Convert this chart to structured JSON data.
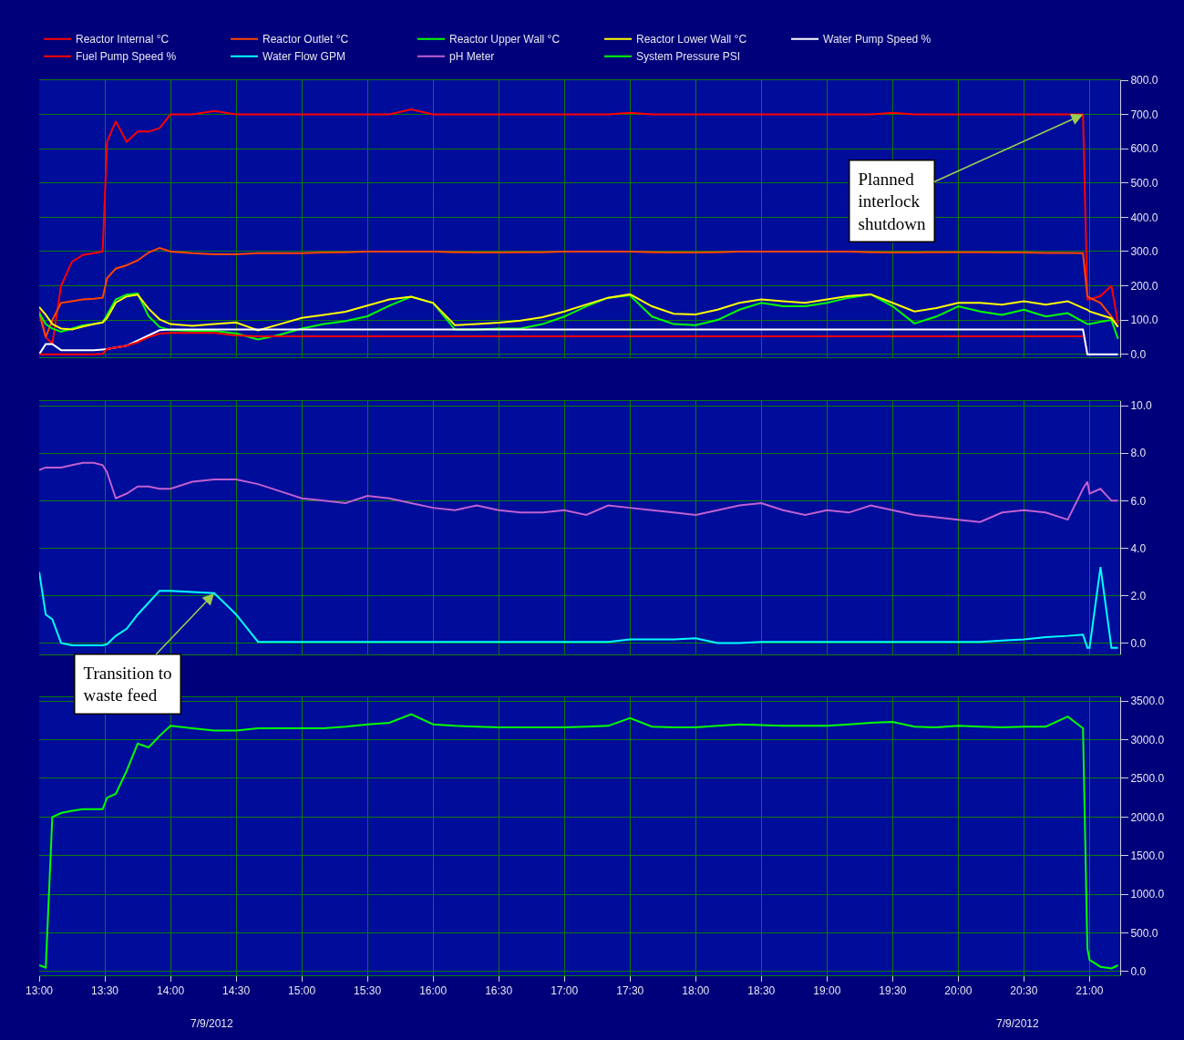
{
  "chart_data": [
    {
      "type": "line",
      "x": [
        "2012-07-09T13:00",
        "2012-07-09T13:03",
        "2012-07-09T13:06",
        "2012-07-09T13:10",
        "2012-07-09T13:15",
        "2012-07-09T13:20",
        "2012-07-09T13:25",
        "2012-07-09T13:29",
        "2012-07-09T13:31",
        "2012-07-09T13:35",
        "2012-07-09T13:40",
        "2012-07-09T13:45",
        "2012-07-09T13:50",
        "2012-07-09T13:55",
        "2012-07-09T14:00",
        "2012-07-09T14:10",
        "2012-07-09T14:20",
        "2012-07-09T14:30",
        "2012-07-09T14:40",
        "2012-07-09T14:50",
        "2012-07-09T15:00",
        "2012-07-09T15:10",
        "2012-07-09T15:20",
        "2012-07-09T15:30",
        "2012-07-09T15:40",
        "2012-07-09T15:50",
        "2012-07-09T16:00",
        "2012-07-09T16:10",
        "2012-07-09T16:20",
        "2012-07-09T16:30",
        "2012-07-09T16:40",
        "2012-07-09T16:50",
        "2012-07-09T17:00",
        "2012-07-09T17:10",
        "2012-07-09T17:20",
        "2012-07-09T17:30",
        "2012-07-09T17:40",
        "2012-07-09T17:50",
        "2012-07-09T18:00",
        "2012-07-09T18:10",
        "2012-07-09T18:20",
        "2012-07-09T18:30",
        "2012-07-09T18:40",
        "2012-07-09T18:50",
        "2012-07-09T19:00",
        "2012-07-09T19:10",
        "2012-07-09T19:20",
        "2012-07-09T19:30",
        "2012-07-09T19:40",
        "2012-07-09T19:50",
        "2012-07-09T20:00",
        "2012-07-09T20:10",
        "2012-07-09T20:20",
        "2012-07-09T20:30",
        "2012-07-09T20:40",
        "2012-07-09T20:50",
        "2012-07-09T20:57",
        "2012-07-09T20:59",
        "2012-07-09T21:00",
        "2012-07-09T21:05",
        "2012-07-09T21:10",
        "2012-07-09T21:13"
      ],
      "series": [
        {
          "name": "Reactor Internal °C",
          "color": "#ff0000",
          "values": [
            130,
            50,
            30,
            200,
            270,
            290,
            295,
            300,
            620,
            680,
            620,
            650,
            650,
            660,
            700,
            700,
            710,
            700,
            700,
            700,
            700,
            700,
            700,
            700,
            700,
            715,
            700,
            700,
            700,
            700,
            700,
            700,
            700,
            700,
            700,
            705,
            700,
            700,
            700,
            700,
            700,
            700,
            700,
            700,
            700,
            700,
            700,
            705,
            700,
            700,
            700,
            700,
            700,
            700,
            700,
            700,
            700,
            160,
            160,
            170,
            200,
            90
          ]
        },
        {
          "name": "Reactor Outlet °C",
          "color": "#ff4500",
          "values": [
            120,
            50,
            100,
            150,
            155,
            160,
            162,
            165,
            222,
            250,
            260,
            274,
            297,
            310,
            300,
            295,
            292,
            292,
            295,
            295,
            295,
            297,
            298,
            300,
            300,
            300,
            300,
            298,
            297,
            297,
            298,
            298,
            300,
            300,
            300,
            300,
            298,
            297,
            297,
            298,
            300,
            300,
            300,
            300,
            300,
            300,
            298,
            297,
            297,
            298,
            298,
            298,
            297,
            297,
            296,
            296,
            295,
            170,
            165,
            150,
            110,
            80
          ]
        },
        {
          "name": "Reactor Upper Wall °C",
          "color": "#00ff00",
          "values": [
            120,
            88,
            75,
            66,
            75,
            84,
            88,
            93,
            115,
            160,
            174,
            177,
            111,
            80,
            70,
            68,
            68,
            61,
            43,
            57,
            75,
            88,
            97,
            111,
            142,
            168,
            150,
            72,
            72,
            75,
            75,
            88,
            110,
            140,
            165,
            172,
            110,
            88,
            85,
            100,
            130,
            150,
            140,
            140,
            150,
            165,
            175,
            140,
            90,
            110,
            140,
            125,
            115,
            130,
            110,
            120,
            95,
            88,
            88,
            95,
            100,
            45
          ]
        },
        {
          "name": "Reactor Lower Wall °C",
          "color": "#ffff00",
          "values": [
            138,
            115,
            88,
            75,
            72,
            81,
            88,
            93,
            106,
            151,
            169,
            174,
            133,
            102,
            88,
            83,
            88,
            93,
            70,
            88,
            106,
            115,
            124,
            142,
            160,
            168,
            150,
            85,
            88,
            92,
            98,
            108,
            125,
            145,
            165,
            175,
            140,
            118,
            116,
            130,
            150,
            160,
            155,
            150,
            160,
            170,
            175,
            150,
            125,
            135,
            150,
            150,
            145,
            155,
            145,
            155,
            135,
            130,
            125,
            115,
            105,
            80
          ]
        },
        {
          "name": "Water Pump Speed %",
          "color": "#ffffff",
          "values": [
            0,
            30,
            30,
            12,
            12,
            12,
            12,
            14,
            15,
            20,
            25,
            40,
            55,
            70,
            72,
            72,
            72,
            72,
            72,
            72,
            72,
            72,
            72,
            72,
            72,
            72,
            72,
            72,
            72,
            72,
            72,
            72,
            72,
            72,
            72,
            72,
            72,
            72,
            72,
            72,
            72,
            72,
            72,
            72,
            72,
            72,
            72,
            72,
            72,
            72,
            72,
            72,
            72,
            72,
            72,
            72,
            72,
            0,
            0,
            0,
            0,
            0
          ]
        },
        {
          "name": "Fuel Pump Speed %",
          "color": "#ff0000",
          "values": [
            0,
            0,
            0,
            0,
            0,
            0,
            0,
            1,
            15,
            20,
            25,
            35,
            50,
            60,
            62,
            62,
            62,
            55,
            52,
            52,
            52,
            52,
            52,
            52,
            52,
            52,
            52,
            52,
            52,
            52,
            52,
            52,
            52,
            52,
            52,
            52,
            52,
            52,
            52,
            52,
            52,
            52,
            52,
            52,
            52,
            52,
            52,
            52,
            52,
            52,
            52,
            52,
            52,
            52,
            52,
            52,
            52,
            null,
            null,
            null,
            null,
            null
          ]
        }
      ],
      "xlim": [
        "2012-07-09T13:00",
        "2012-07-09T21:14"
      ],
      "xticks": [
        {
          "value": "2012-07-09T13:00",
          "label": null
        },
        {
          "value": "2012-07-09T13:30",
          "label": null
        },
        {
          "value": "2012-07-09T14:00",
          "label": null
        },
        {
          "value": "2012-07-09T14:30",
          "label": null
        },
        {
          "value": "2012-07-09T15:00",
          "label": null
        },
        {
          "value": "2012-07-09T15:30",
          "label": null
        },
        {
          "value": "2012-07-09T16:00",
          "label": null
        },
        {
          "value": "2012-07-09T16:30",
          "label": null
        },
        {
          "value": "2012-07-09T17:00",
          "label": null
        },
        {
          "value": "2012-07-09T17:30",
          "label": null
        },
        {
          "value": "2012-07-09T18:00",
          "label": null
        },
        {
          "value": "2012-07-09T18:30",
          "label": null
        },
        {
          "value": "2012-07-09T19:00",
          "label": null
        },
        {
          "value": "2012-07-09T19:30",
          "label": null
        },
        {
          "value": "2012-07-09T20:00",
          "label": null
        },
        {
          "value": "2012-07-09T20:30",
          "label": null
        },
        {
          "value": "2012-07-09T21:00",
          "label": null
        }
      ],
      "ylim": [
        -10,
        800
      ],
      "yticks": [
        {
          "value": 0,
          "label": "0.0"
        },
        {
          "value": 100,
          "label": "100.0"
        },
        {
          "value": 200,
          "label": "200.0"
        },
        {
          "value": 300,
          "label": "300.0"
        },
        {
          "value": 400,
          "label": "400.0"
        },
        {
          "value": 500,
          "label": "500.0"
        },
        {
          "value": 600,
          "label": "600.0"
        },
        {
          "value": 700,
          "label": "700.0"
        },
        {
          "value": 800,
          "label": "800.0"
        }
      ],
      "tick_labels": "y",
      "grid": true,
      "legend": "top",
      "annotations": [
        {
          "text": "Planned\ninterlock\nshutdown",
          "x": "2012-07-09T20:57",
          "y": 700
        }
      ]
    },
    {
      "type": "line",
      "x": [
        "2012-07-09T13:00",
        "2012-07-09T13:03",
        "2012-07-09T13:06",
        "2012-07-09T13:10",
        "2012-07-09T13:15",
        "2012-07-09T13:20",
        "2012-07-09T13:25",
        "2012-07-09T13:29",
        "2012-07-09T13:31",
        "2012-07-09T13:35",
        "2012-07-09T13:40",
        "2012-07-09T13:45",
        "2012-07-09T13:50",
        "2012-07-09T13:55",
        "2012-07-09T14:00",
        "2012-07-09T14:10",
        "2012-07-09T14:20",
        "2012-07-09T14:30",
        "2012-07-09T14:40",
        "2012-07-09T14:50",
        "2012-07-09T15:00",
        "2012-07-09T15:10",
        "2012-07-09T15:20",
        "2012-07-09T15:30",
        "2012-07-09T15:40",
        "2012-07-09T15:50",
        "2012-07-09T16:00",
        "2012-07-09T16:10",
        "2012-07-09T16:20",
        "2012-07-09T16:30",
        "2012-07-09T16:40",
        "2012-07-09T16:50",
        "2012-07-09T17:00",
        "2012-07-09T17:10",
        "2012-07-09T17:20",
        "2012-07-09T17:30",
        "2012-07-09T17:40",
        "2012-07-09T17:50",
        "2012-07-09T18:00",
        "2012-07-09T18:10",
        "2012-07-09T18:20",
        "2012-07-09T18:30",
        "2012-07-09T18:40",
        "2012-07-09T18:50",
        "2012-07-09T19:00",
        "2012-07-09T19:10",
        "2012-07-09T19:20",
        "2012-07-09T19:30",
        "2012-07-09T19:40",
        "2012-07-09T19:50",
        "2012-07-09T20:00",
        "2012-07-09T20:10",
        "2012-07-09T20:20",
        "2012-07-09T20:30",
        "2012-07-09T20:40",
        "2012-07-09T20:50",
        "2012-07-09T20:57",
        "2012-07-09T20:59",
        "2012-07-09T21:00",
        "2012-07-09T21:05",
        "2012-07-09T21:10",
        "2012-07-09T21:13"
      ],
      "series": [
        {
          "name": "Water Flow GPM",
          "color": "#00ffff",
          "values": [
            3.0,
            1.2,
            1.0,
            0.0,
            -0.1,
            -0.1,
            -0.1,
            -0.1,
            -0.05,
            0.3,
            0.6,
            1.2,
            1.7,
            2.2,
            2.2,
            2.15,
            2.1,
            1.2,
            0.05,
            0.05,
            0.05,
            0.05,
            0.05,
            0.05,
            0.05,
            0.05,
            0.05,
            0.05,
            0.05,
            0.05,
            0.05,
            0.05,
            0.05,
            0.05,
            0.05,
            0.15,
            0.15,
            0.15,
            0.2,
            0.0,
            0.0,
            0.05,
            0.05,
            0.05,
            0.05,
            0.05,
            0.05,
            0.05,
            0.05,
            0.05,
            0.05,
            0.05,
            0.1,
            0.15,
            0.25,
            0.3,
            0.35,
            -0.2,
            -0.2,
            3.2,
            -0.2,
            -0.2
          ]
        },
        {
          "name": "pH Meter",
          "color": "#c060d0",
          "values": [
            7.3,
            7.4,
            7.4,
            7.4,
            7.5,
            7.6,
            7.6,
            7.5,
            7.2,
            6.1,
            6.3,
            6.6,
            6.6,
            6.5,
            6.5,
            6.8,
            6.9,
            6.9,
            6.7,
            6.4,
            6.1,
            6.0,
            5.9,
            6.2,
            6.1,
            5.9,
            5.7,
            5.6,
            5.8,
            5.6,
            5.5,
            5.5,
            5.6,
            5.4,
            5.8,
            5.7,
            5.6,
            5.5,
            5.4,
            5.6,
            5.8,
            5.9,
            5.6,
            5.4,
            5.6,
            5.5,
            5.8,
            5.6,
            5.4,
            5.3,
            5.2,
            5.1,
            5.5,
            5.6,
            5.5,
            5.2,
            6.5,
            6.8,
            6.3,
            6.5,
            6.0,
            6.0
          ]
        }
      ],
      "xlim": [
        "2012-07-09T13:00",
        "2012-07-09T21:14"
      ],
      "xticks": [
        {
          "value": "2012-07-09T13:00",
          "label": null
        },
        {
          "value": "2012-07-09T13:30",
          "label": null
        },
        {
          "value": "2012-07-09T14:00",
          "label": null
        },
        {
          "value": "2012-07-09T14:30",
          "label": null
        },
        {
          "value": "2012-07-09T15:00",
          "label": null
        },
        {
          "value": "2012-07-09T15:30",
          "label": null
        },
        {
          "value": "2012-07-09T16:00",
          "label": null
        },
        {
          "value": "2012-07-09T16:30",
          "label": null
        },
        {
          "value": "2012-07-09T17:00",
          "label": null
        },
        {
          "value": "2012-07-09T17:30",
          "label": null
        },
        {
          "value": "2012-07-09T18:00",
          "label": null
        },
        {
          "value": "2012-07-09T18:30",
          "label": null
        },
        {
          "value": "2012-07-09T19:00",
          "label": null
        },
        {
          "value": "2012-07-09T19:30",
          "label": null
        },
        {
          "value": "2012-07-09T20:00",
          "label": null
        },
        {
          "value": "2012-07-09T20:30",
          "label": null
        },
        {
          "value": "2012-07-09T21:00",
          "label": null
        }
      ],
      "ylim": [
        -0.5,
        10.2
      ],
      "yticks": [
        {
          "value": 0,
          "label": "0.0"
        },
        {
          "value": 2,
          "label": "2.0"
        },
        {
          "value": 4,
          "label": "4.0"
        },
        {
          "value": 6,
          "label": "6.0"
        },
        {
          "value": 8,
          "label": "8.0"
        },
        {
          "value": 10,
          "label": "10.0"
        }
      ],
      "tick_labels": "y",
      "grid": true,
      "legend": "top",
      "annotations": [
        {
          "text": "Transition to\nwaste feed",
          "x": "2012-07-09T14:20",
          "y": 2.1
        }
      ]
    },
    {
      "type": "line",
      "x": [
        "2012-07-09T13:00",
        "2012-07-09T13:03",
        "2012-07-09T13:06",
        "2012-07-09T13:10",
        "2012-07-09T13:15",
        "2012-07-09T13:20",
        "2012-07-09T13:25",
        "2012-07-09T13:29",
        "2012-07-09T13:31",
        "2012-07-09T13:35",
        "2012-07-09T13:40",
        "2012-07-09T13:45",
        "2012-07-09T13:50",
        "2012-07-09T13:55",
        "2012-07-09T14:00",
        "2012-07-09T14:10",
        "2012-07-09T14:20",
        "2012-07-09T14:30",
        "2012-07-09T14:40",
        "2012-07-09T14:50",
        "2012-07-09T15:00",
        "2012-07-09T15:10",
        "2012-07-09T15:20",
        "2012-07-09T15:30",
        "2012-07-09T15:40",
        "2012-07-09T15:50",
        "2012-07-09T16:00",
        "2012-07-09T16:10",
        "2012-07-09T16:20",
        "2012-07-09T16:30",
        "2012-07-09T16:40",
        "2012-07-09T16:50",
        "2012-07-09T17:00",
        "2012-07-09T17:10",
        "2012-07-09T17:20",
        "2012-07-09T17:30",
        "2012-07-09T17:40",
        "2012-07-09T17:50",
        "2012-07-09T18:00",
        "2012-07-09T18:10",
        "2012-07-09T18:20",
        "2012-07-09T18:30",
        "2012-07-09T18:40",
        "2012-07-09T18:50",
        "2012-07-09T19:00",
        "2012-07-09T19:10",
        "2012-07-09T19:20",
        "2012-07-09T19:30",
        "2012-07-09T19:40",
        "2012-07-09T19:50",
        "2012-07-09T20:00",
        "2012-07-09T20:10",
        "2012-07-09T20:20",
        "2012-07-09T20:30",
        "2012-07-09T20:40",
        "2012-07-09T20:50",
        "2012-07-09T20:57",
        "2012-07-09T20:59",
        "2012-07-09T21:00",
        "2012-07-09T21:05",
        "2012-07-09T21:10",
        "2012-07-09T21:13"
      ],
      "series": [
        {
          "name": "System Pressure PSI",
          "color": "#00ff00",
          "values": [
            80,
            50,
            2000,
            2050,
            2080,
            2100,
            2100,
            2100,
            2250,
            2300,
            2600,
            2950,
            2900,
            3050,
            3180,
            3150,
            3120,
            3120,
            3150,
            3150,
            3150,
            3150,
            3170,
            3200,
            3220,
            3330,
            3200,
            3180,
            3170,
            3160,
            3160,
            3160,
            3160,
            3170,
            3180,
            3280,
            3170,
            3160,
            3160,
            3180,
            3200,
            3190,
            3180,
            3180,
            3180,
            3200,
            3220,
            3230,
            3170,
            3160,
            3180,
            3170,
            3160,
            3170,
            3170,
            3300,
            3150,
            300,
            150,
            60,
            40,
            80
          ]
        }
      ],
      "xlim": [
        "2012-07-09T13:00",
        "2012-07-09T21:14"
      ],
      "xticks": [
        {
          "value": "2012-07-09T13:00",
          "label": "13:00"
        },
        {
          "value": "2012-07-09T13:30",
          "label": "13:30"
        },
        {
          "value": "2012-07-09T14:00",
          "label": "14:00"
        },
        {
          "value": "2012-07-09T14:30",
          "label": "14:30"
        },
        {
          "value": "2012-07-09T15:00",
          "label": "15:00"
        },
        {
          "value": "2012-07-09T15:30",
          "label": "15:30"
        },
        {
          "value": "2012-07-09T16:00",
          "label": "16:00"
        },
        {
          "value": "2012-07-09T16:30",
          "label": "16:30"
        },
        {
          "value": "2012-07-09T17:00",
          "label": "17:00"
        },
        {
          "value": "2012-07-09T17:30",
          "label": "17:30"
        },
        {
          "value": "2012-07-09T18:00",
          "label": "18:00"
        },
        {
          "value": "2012-07-09T18:30",
          "label": "18:30"
        },
        {
          "value": "2012-07-09T19:00",
          "label": "19:00"
        },
        {
          "value": "2012-07-09T19:30",
          "label": "19:30"
        },
        {
          "value": "2012-07-09T20:00",
          "label": "20:00"
        },
        {
          "value": "2012-07-09T20:30",
          "label": "20:30"
        },
        {
          "value": "2012-07-09T21:00",
          "label": "21:00"
        }
      ],
      "ylim": [
        -50,
        3550
      ],
      "yticks": [
        {
          "value": 0,
          "label": "0.0"
        },
        {
          "value": 500,
          "label": "500.0"
        },
        {
          "value": 1000,
          "label": "1000.0"
        },
        {
          "value": 1500,
          "label": "1500.0"
        },
        {
          "value": 2000,
          "label": "2000.0"
        },
        {
          "value": 2500,
          "label": "2500.0"
        },
        {
          "value": 3000,
          "label": "3000.0"
        },
        {
          "value": 3500,
          "label": "3500.0"
        }
      ],
      "grid": true,
      "legend": "top",
      "annotations": [
        "7/9/2012",
        "7/9/2012"
      ]
    }
  ]
}
